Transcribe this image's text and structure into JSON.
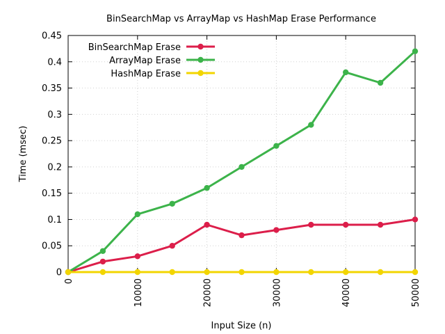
{
  "chart_data": {
    "type": "line",
    "title": "BinSearchMap vs ArrayMap vs HashMap Erase Performance",
    "xlabel": "Input Size (n)",
    "ylabel": "Time (msec)",
    "xlim": [
      0,
      50000
    ],
    "ylim": [
      0,
      0.45
    ],
    "x_ticks": [
      0,
      10000,
      20000,
      30000,
      40000,
      50000
    ],
    "y_ticks": [
      "0",
      "0.05",
      "0.1",
      "0.15",
      "0.2",
      "0.25",
      "0.3",
      "0.35",
      "0.4",
      "0.45"
    ],
    "grid": true,
    "legend_position": "top-left",
    "x": [
      0,
      5000,
      10000,
      15000,
      20000,
      25000,
      30000,
      35000,
      40000,
      45000,
      50000
    ],
    "series": [
      {
        "name": "BinSearchMap Erase",
        "color": "#dc1e4a",
        "values": [
          0,
          0.02,
          0.03,
          0.05,
          0.09,
          0.07,
          0.08,
          0.09,
          0.09,
          0.09,
          0.1
        ]
      },
      {
        "name": "ArrayMap Erase",
        "color": "#3cb34a",
        "values": [
          0,
          0.04,
          0.11,
          0.13,
          0.16,
          0.2,
          0.24,
          0.28,
          0.38,
          0.36,
          0.42
        ]
      },
      {
        "name": "HashMap Erase",
        "color": "#f2d500",
        "values": [
          0,
          0,
          0,
          0,
          0,
          0,
          0,
          0,
          0,
          0,
          0
        ]
      }
    ]
  }
}
